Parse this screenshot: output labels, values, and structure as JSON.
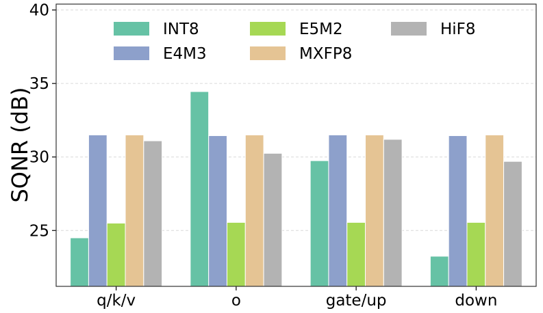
{
  "chart_data": {
    "type": "bar",
    "title": "",
    "xlabel": "",
    "ylabel": "SQNR (dB)",
    "ylim": [
      21.2,
      40.4
    ],
    "yticks": [
      25,
      30,
      35,
      40
    ],
    "ytick_labels": [
      "25",
      "30",
      "35",
      "40"
    ],
    "grid": "horizontal-dashed",
    "legend_position": "top",
    "categories": [
      "q/k/v",
      "o",
      "gate/up",
      "down"
    ],
    "series": [
      {
        "name": "INT8",
        "color": "#66c2a5",
        "values": [
          24.5,
          34.45,
          29.75,
          23.25
        ]
      },
      {
        "name": "E4M3",
        "color": "#8da0cb",
        "values": [
          31.5,
          31.45,
          31.5,
          31.45
        ]
      },
      {
        "name": "E5M2",
        "color": "#a6d854",
        "values": [
          25.5,
          25.55,
          25.55,
          25.55
        ]
      },
      {
        "name": "MXFP8",
        "color": "#e5c494",
        "values": [
          31.5,
          31.5,
          31.5,
          31.5
        ]
      },
      {
        "name": "HiF8",
        "color": "#b3b3b3",
        "values": [
          31.1,
          30.25,
          31.2,
          29.7
        ]
      }
    ]
  }
}
